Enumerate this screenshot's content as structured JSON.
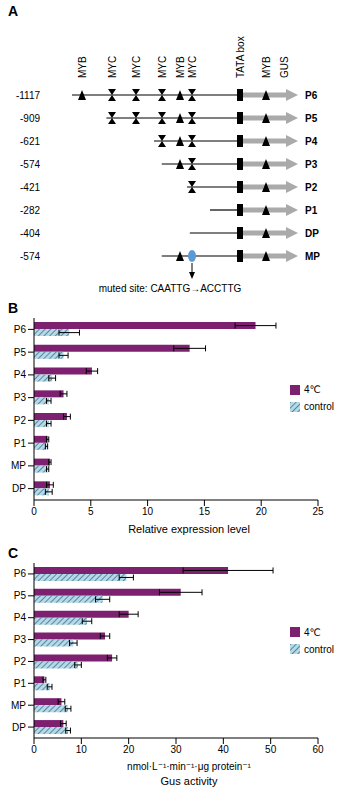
{
  "diagram": {
    "panel_label": "A",
    "motifs": [
      "MYB",
      "MYC",
      "MYC",
      "MYC",
      "MYB",
      "MYC",
      "TATA box",
      "MYB"
    ],
    "reporter": "GUS",
    "constructs": [
      {
        "name": "P6",
        "start": -1117,
        "motifs": [
          0,
          1,
          2,
          3,
          4,
          5,
          6,
          7
        ]
      },
      {
        "name": "P5",
        "start": -909,
        "motifs": [
          1,
          2,
          3,
          4,
          5,
          6,
          7
        ]
      },
      {
        "name": "P4",
        "start": -621,
        "motifs": [
          3,
          4,
          5,
          6,
          7
        ]
      },
      {
        "name": "P3",
        "start": -574,
        "motifs": [
          4,
          5,
          6,
          7
        ]
      },
      {
        "name": "P2",
        "start": -421,
        "motifs": [
          5,
          6,
          7
        ]
      },
      {
        "name": "P1",
        "start": -282,
        "motifs": [
          6,
          7
        ]
      },
      {
        "name": "DP",
        "start": -404,
        "motifs": [
          6,
          7
        ]
      },
      {
        "name": "MP",
        "start": -574,
        "motifs": [
          4,
          5,
          6,
          7
        ],
        "mutated": 5
      }
    ],
    "mutation_label": "muted site: CAATTG→ACCTTG"
  },
  "chart_data": [
    {
      "panel_label": "B",
      "type": "bar",
      "orientation": "horizontal",
      "categories": [
        "P6",
        "P5",
        "P4",
        "P3",
        "P2",
        "P1",
        "MP",
        "DP"
      ],
      "series": [
        {
          "name": "4℃",
          "color": "#7d2070",
          "values": [
            19.5,
            13.7,
            5.1,
            2.6,
            2.9,
            1.2,
            1.4,
            1.4
          ],
          "errors": [
            1.8,
            1.4,
            0.5,
            0.3,
            0.3,
            0.1,
            0.1,
            0.3
          ]
        },
        {
          "name": "control",
          "color": "#b5d9e6",
          "values": [
            3.1,
            2.6,
            1.6,
            1.3,
            1.3,
            1.1,
            1.2,
            1.3
          ],
          "errors": [
            0.9,
            0.4,
            0.3,
            0.2,
            0.2,
            0.1,
            0.1,
            0.3
          ]
        }
      ],
      "xlim": [
        0,
        25
      ],
      "xticks": [
        0,
        5,
        10,
        15,
        20,
        25
      ],
      "x_label": "Relative expression level",
      "legend": "right"
    },
    {
      "panel_label": "C",
      "type": "bar",
      "orientation": "horizontal",
      "categories": [
        "P6",
        "P5",
        "P4",
        "P3",
        "P2",
        "P1",
        "MP",
        "DP"
      ],
      "series": [
        {
          "name": "4℃",
          "color": "#7d2070",
          "values": [
            41,
            31,
            20,
            15,
            16.5,
            2.2,
            5.8,
            6.2
          ],
          "errors": [
            9.5,
            4.5,
            2,
            1,
            1,
            0.3,
            0.7,
            0.6
          ]
        },
        {
          "name": "control",
          "color": "#b5d9e6",
          "values": [
            19.5,
            14.5,
            11.2,
            8.3,
            9.3,
            3.3,
            7.2,
            7.2
          ],
          "errors": [
            1.5,
            1.5,
            1,
            0.8,
            0.7,
            0.5,
            0.6,
            0.5
          ]
        }
      ],
      "xlim": [
        0,
        60
      ],
      "xticks": [
        0,
        10,
        20,
        30,
        40,
        50,
        60
      ],
      "x_units": "nmol·L⁻¹·min⁻¹·μg protein⁻¹",
      "x_label": "Gus activity",
      "legend": "right"
    }
  ]
}
